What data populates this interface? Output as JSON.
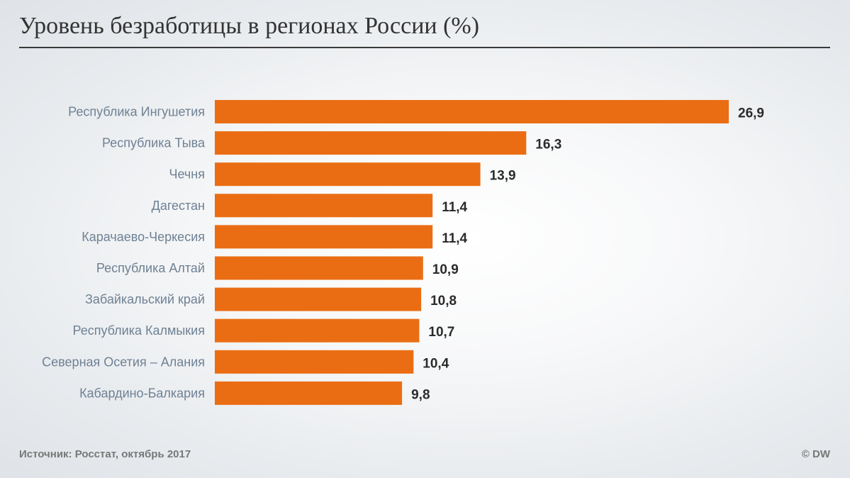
{
  "chart_data": {
    "type": "bar",
    "orientation": "horizontal",
    "title": "Уровень безработицы в регионах России (%)",
    "categories": [
      "Республика Ингушетия",
      "Республика Тыва",
      "Чечня",
      "Дагестан",
      "Карачаево-Черкесия",
      "Республика Алтай",
      "Забайкальский край",
      "Республика Калмыкия",
      "Северная Осетия – Алания",
      "Кабардино-Балкария"
    ],
    "values": [
      26.9,
      16.3,
      13.9,
      11.4,
      11.4,
      10.9,
      10.8,
      10.7,
      10.4,
      9.8
    ],
    "value_labels": [
      "26,9",
      "16,3",
      "13,9",
      "11,4",
      "11,4",
      "10,9",
      "10,8",
      "10,7",
      "10,4",
      "9,8"
    ],
    "xlabel": "",
    "ylabel": "",
    "xlim": [
      0,
      26.9
    ],
    "grid": false,
    "bar_color": "#eb6d13"
  },
  "footer": {
    "source": "Источник: Росстат, октябрь 2017",
    "credit": "© DW"
  }
}
